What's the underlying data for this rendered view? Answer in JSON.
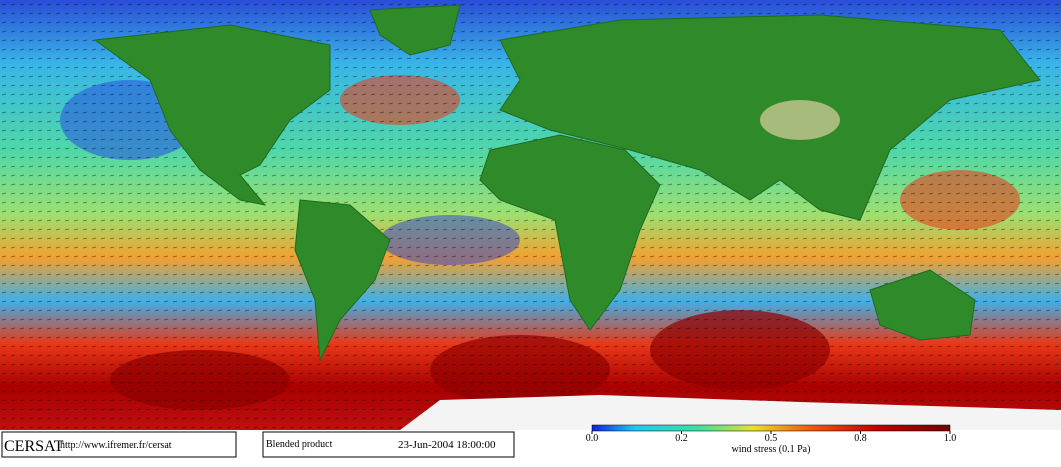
{
  "footer": {
    "logo": "CERSAT",
    "url": "http://www.ifremer.fr/cersat",
    "product": "Blended product",
    "date": "23-Jun-2004 18:00:00"
  },
  "colorbar": {
    "label": "wind stress (0.1 Pa)",
    "ticks": [
      {
        "value": 0,
        "label": "0.0"
      },
      0.2,
      0.5,
      0.8,
      {
        "value": 1,
        "label": "1.0"
      }
    ]
  }
}
